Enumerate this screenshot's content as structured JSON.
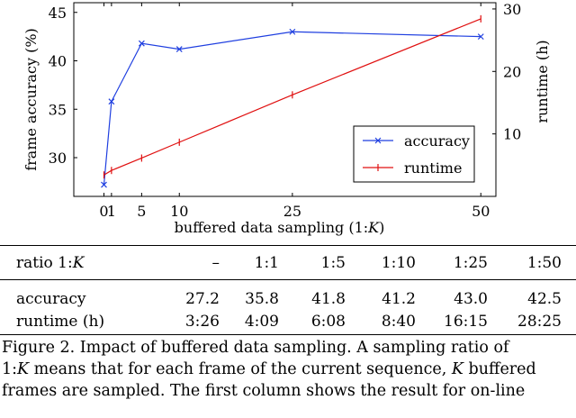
{
  "chart_data": {
    "type": "line",
    "xlabel": "buffered data sampling (1:K)",
    "ylabel_left": "frame accuracy  (%)",
    "ylabel_right": "runtime  (h)",
    "x_ticks": [
      "0",
      "1",
      "5",
      "10",
      "25",
      "50"
    ],
    "y_left_ticks": [
      "30",
      "35",
      "40",
      "45"
    ],
    "y_right_ticks": [
      "10",
      "20",
      "30"
    ],
    "y_left_range": [
      26,
      46
    ],
    "y_right_range": [
      0,
      31
    ],
    "x_range": [
      -4,
      52
    ],
    "legend_position": "lower-right",
    "series": [
      {
        "name": "accuracy",
        "axis": "left",
        "color": "#1f3fe0",
        "marker": "x",
        "x": [
          0,
          1,
          5,
          10,
          25,
          50
        ],
        "y": [
          27.2,
          35.8,
          41.8,
          41.2,
          43.0,
          42.5
        ]
      },
      {
        "name": "runtime",
        "axis": "right",
        "color": "#e01010",
        "marker": "|",
        "x": [
          0,
          1,
          5,
          10,
          25,
          50
        ],
        "y": [
          3.43,
          4.15,
          6.13,
          8.67,
          16.25,
          28.42
        ]
      }
    ]
  },
  "table": {
    "header_label": "ratio 1:K",
    "header_values": [
      "–",
      "1:1",
      "1:5",
      "1:10",
      "1:25",
      "1:50"
    ],
    "rows": [
      {
        "label": "accuracy",
        "values": [
          "27.2",
          "35.8",
          "41.8",
          "41.2",
          "43.0",
          "42.5"
        ]
      },
      {
        "label": "runtime (h)",
        "values": [
          "3:26",
          "4:09",
          "6:08",
          "8:40",
          "16:15",
          "28:25"
        ]
      }
    ]
  },
  "caption": {
    "line1": "Figure 2.  Impact of buffered data sampling. A sampling ratio of",
    "line2": "1:K means that for each frame of the current sequence, K buffered",
    "line3": "frames are sampled. The first column shows the result for on-line"
  }
}
